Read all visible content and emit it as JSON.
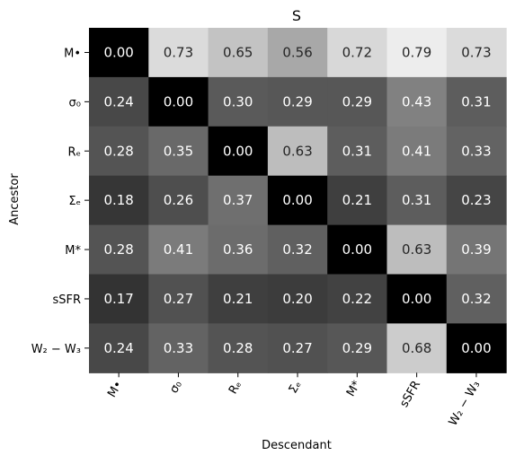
{
  "chart_data": {
    "type": "heatmap",
    "title": "S",
    "xlabel": "Descendant",
    "ylabel": "Ancestor",
    "x_categories": [
      "M•",
      "σ₀",
      "Rₑ",
      "Σₑ",
      "M*",
      "sSFR",
      "W₂ − W₃"
    ],
    "y_categories": [
      "M•",
      "σ₀",
      "Rₑ",
      "Σₑ",
      "M*",
      "sSFR",
      "W₂ − W₃"
    ],
    "values": [
      [
        0.0,
        0.73,
        0.65,
        0.56,
        0.72,
        0.79,
        0.73
      ],
      [
        0.24,
        0.0,
        0.3,
        0.29,
        0.29,
        0.43,
        0.31
      ],
      [
        0.28,
        0.35,
        0.0,
        0.63,
        0.31,
        0.41,
        0.33
      ],
      [
        0.18,
        0.26,
        0.37,
        0.0,
        0.21,
        0.31,
        0.23
      ],
      [
        0.28,
        0.41,
        0.36,
        0.32,
        0.0,
        0.63,
        0.39
      ],
      [
        0.17,
        0.27,
        0.21,
        0.2,
        0.22,
        0.0,
        0.32
      ],
      [
        0.24,
        0.33,
        0.28,
        0.27,
        0.29,
        0.68,
        0.0
      ]
    ],
    "colormap": "grayscale",
    "value_range": [
      0.0,
      0.79
    ],
    "legend": "none",
    "grid": false
  }
}
